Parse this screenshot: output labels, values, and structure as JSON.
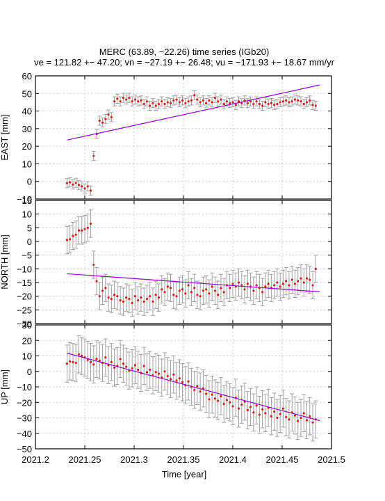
{
  "chart_data": {
    "type": "scatter",
    "title": "MERC (63.89, −22.26) time series (IGb20)",
    "subtitle": "ve = 121.82 +− 47.20; vn = −27.19 +− 26.48; vu = −171.93 +− 18.67 mm/yr",
    "xlabel": "Time [year]",
    "xlim": [
      2021.2,
      2021.5
    ],
    "xticks": [
      "2021.2",
      "2021.25",
      "2021.3",
      "2021.35",
      "2021.4",
      "2021.45",
      "2021.5"
    ],
    "grid": true,
    "panels": [
      {
        "name": "east",
        "ylabel": "EAST [mm]",
        "ylim": [
          -10,
          60
        ],
        "yticks": [
          "−10",
          "0",
          "10",
          "20",
          "30",
          "40",
          "50",
          "60"
        ],
        "trend": {
          "x": [
            2021.232,
            2021.488
          ],
          "y": [
            23.5,
            54.8
          ]
        },
        "error": 2.6,
        "points": [
          [
            2021.232,
            -1.0
          ],
          [
            2021.235,
            -0.5
          ],
          [
            2021.238,
            -1.8
          ],
          [
            2021.241,
            -0.8
          ],
          [
            2021.244,
            -2.0
          ],
          [
            2021.247,
            -2.8
          ],
          [
            2021.25,
            -4.0
          ],
          [
            2021.253,
            -2.8
          ],
          [
            2021.256,
            -5.2
          ],
          [
            2021.259,
            14.5
          ],
          [
            2021.262,
            27.0
          ],
          [
            2021.265,
            34.5
          ],
          [
            2021.268,
            33.5
          ],
          [
            2021.271,
            35.5
          ],
          [
            2021.274,
            38.0
          ],
          [
            2021.277,
            36.5
          ],
          [
            2021.28,
            45.5
          ],
          [
            2021.283,
            47.0
          ],
          [
            2021.286,
            45.5
          ],
          [
            2021.289,
            47.5
          ],
          [
            2021.292,
            46.5
          ],
          [
            2021.295,
            47.5
          ],
          [
            2021.298,
            45.5
          ],
          [
            2021.301,
            46.5
          ],
          [
            2021.304,
            45.5
          ],
          [
            2021.307,
            46.0
          ],
          [
            2021.31,
            44.0
          ],
          [
            2021.313,
            45.5
          ],
          [
            2021.316,
            43.0
          ],
          [
            2021.319,
            44.5
          ],
          [
            2021.322,
            43.0
          ],
          [
            2021.325,
            44.0
          ],
          [
            2021.328,
            45.5
          ],
          [
            2021.331,
            44.0
          ],
          [
            2021.334,
            45.0
          ],
          [
            2021.337,
            44.5
          ],
          [
            2021.34,
            46.0
          ],
          [
            2021.343,
            46.5
          ],
          [
            2021.346,
            45.0
          ],
          [
            2021.349,
            46.0
          ],
          [
            2021.352,
            44.5
          ],
          [
            2021.355,
            45.5
          ],
          [
            2021.358,
            46.0
          ],
          [
            2021.361,
            49.0
          ],
          [
            2021.364,
            46.5
          ],
          [
            2021.367,
            45.0
          ],
          [
            2021.37,
            46.0
          ],
          [
            2021.373,
            44.5
          ],
          [
            2021.376,
            46.0
          ],
          [
            2021.379,
            45.0
          ],
          [
            2021.382,
            47.5
          ],
          [
            2021.385,
            45.5
          ],
          [
            2021.388,
            46.5
          ],
          [
            2021.391,
            44.0
          ],
          [
            2021.394,
            45.5
          ],
          [
            2021.397,
            44.5
          ],
          [
            2021.4,
            45.0
          ],
          [
            2021.403,
            43.5
          ],
          [
            2021.406,
            45.5
          ],
          [
            2021.409,
            44.5
          ],
          [
            2021.412,
            46.0
          ],
          [
            2021.415,
            44.5
          ],
          [
            2021.418,
            45.5
          ],
          [
            2021.421,
            44.0
          ],
          [
            2021.424,
            45.5
          ],
          [
            2021.427,
            44.0
          ],
          [
            2021.43,
            43.0
          ],
          [
            2021.433,
            45.0
          ],
          [
            2021.436,
            44.0
          ],
          [
            2021.439,
            44.5
          ],
          [
            2021.442,
            43.5
          ],
          [
            2021.445,
            44.0
          ],
          [
            2021.448,
            45.0
          ],
          [
            2021.451,
            45.5
          ],
          [
            2021.454,
            46.0
          ],
          [
            2021.457,
            45.0
          ],
          [
            2021.46,
            45.5
          ],
          [
            2021.463,
            46.5
          ],
          [
            2021.466,
            46.0
          ],
          [
            2021.469,
            45.5
          ],
          [
            2021.472,
            44.0
          ],
          [
            2021.475,
            45.0
          ],
          [
            2021.478,
            46.0
          ],
          [
            2021.481,
            43.5
          ],
          [
            2021.484,
            43.0
          ]
        ]
      },
      {
        "name": "north",
        "ylabel": "NORTH [mm]",
        "ylim": [
          -30,
          15
        ],
        "yticks": [
          "−30",
          "−25",
          "−20",
          "−15",
          "−10",
          "−5",
          "0",
          "5",
          "10",
          "15"
        ],
        "trend": {
          "x": [
            2021.232,
            2021.488
          ],
          "y": [
            -11.8,
            -18.4
          ]
        },
        "error": 5.0,
        "points": [
          [
            2021.232,
            0.5
          ],
          [
            2021.235,
            0.8
          ],
          [
            2021.238,
            2.0
          ],
          [
            2021.241,
            2.5
          ],
          [
            2021.244,
            4.0
          ],
          [
            2021.247,
            4.0
          ],
          [
            2021.25,
            4.5
          ],
          [
            2021.253,
            5.0
          ],
          [
            2021.256,
            6.5
          ],
          [
            2021.259,
            -8.5
          ],
          [
            2021.262,
            -14.5
          ],
          [
            2021.265,
            -20.0
          ],
          [
            2021.268,
            -18.0
          ],
          [
            2021.271,
            -17.0
          ],
          [
            2021.274,
            -20.5
          ],
          [
            2021.277,
            -21.0
          ],
          [
            2021.28,
            -19.5
          ],
          [
            2021.283,
            -20.0
          ],
          [
            2021.286,
            -21.5
          ],
          [
            2021.289,
            -22.0
          ],
          [
            2021.292,
            -20.5
          ],
          [
            2021.295,
            -21.0
          ],
          [
            2021.298,
            -22.5
          ],
          [
            2021.301,
            -20.0
          ],
          [
            2021.304,
            -21.5
          ],
          [
            2021.307,
            -20.5
          ],
          [
            2021.31,
            -22.0
          ],
          [
            2021.313,
            -21.0
          ],
          [
            2021.316,
            -20.0
          ],
          [
            2021.319,
            -22.0
          ],
          [
            2021.322,
            -19.5
          ],
          [
            2021.325,
            -20.5
          ],
          [
            2021.328,
            -17.5
          ],
          [
            2021.331,
            -18.5
          ],
          [
            2021.334,
            -16.5
          ],
          [
            2021.337,
            -17.0
          ],
          [
            2021.34,
            -19.5
          ],
          [
            2021.343,
            -20.0
          ],
          [
            2021.346,
            -18.0
          ],
          [
            2021.349,
            -17.5
          ],
          [
            2021.352,
            -19.0
          ],
          [
            2021.355,
            -16.0
          ],
          [
            2021.358,
            -18.5
          ],
          [
            2021.361,
            -17.0
          ],
          [
            2021.364,
            -19.5
          ],
          [
            2021.367,
            -20.0
          ],
          [
            2021.37,
            -18.0
          ],
          [
            2021.373,
            -17.5
          ],
          [
            2021.376,
            -19.0
          ],
          [
            2021.379,
            -16.5
          ],
          [
            2021.382,
            -18.0
          ],
          [
            2021.385,
            -19.5
          ],
          [
            2021.388,
            -17.0
          ],
          [
            2021.391,
            -18.5
          ],
          [
            2021.394,
            -16.0
          ],
          [
            2021.397,
            -17.0
          ],
          [
            2021.4,
            -15.5
          ],
          [
            2021.403,
            -16.5
          ],
          [
            2021.406,
            -15.0
          ],
          [
            2021.409,
            -16.0
          ],
          [
            2021.412,
            -17.5
          ],
          [
            2021.415,
            -15.5
          ],
          [
            2021.418,
            -16.5
          ],
          [
            2021.421,
            -18.0
          ],
          [
            2021.424,
            -16.0
          ],
          [
            2021.427,
            -17.0
          ],
          [
            2021.43,
            -18.5
          ],
          [
            2021.433,
            -16.5
          ],
          [
            2021.436,
            -15.5
          ],
          [
            2021.439,
            -17.0
          ],
          [
            2021.442,
            -16.0
          ],
          [
            2021.445,
            -15.0
          ],
          [
            2021.448,
            -16.5
          ],
          [
            2021.451,
            -15.5
          ],
          [
            2021.454,
            -14.5
          ],
          [
            2021.457,
            -16.0
          ],
          [
            2021.46,
            -14.0
          ],
          [
            2021.463,
            -15.5
          ],
          [
            2021.466,
            -14.5
          ],
          [
            2021.469,
            -13.5
          ],
          [
            2021.472,
            -15.0
          ],
          [
            2021.475,
            -13.5
          ],
          [
            2021.478,
            -14.0
          ],
          [
            2021.481,
            -16.0
          ],
          [
            2021.484,
            -10.0
          ]
        ]
      },
      {
        "name": "up",
        "ylabel": "UP [mm]",
        "ylim": [
          -50,
          30
        ],
        "yticks": [
          "−50",
          "−40",
          "−30",
          "−20",
          "−10",
          "0",
          "10",
          "20",
          "30"
        ],
        "trend": {
          "x": [
            2021.232,
            2021.488
          ],
          "y": [
            11.8,
            -31.8
          ]
        },
        "error": 12.0,
        "points": [
          [
            2021.232,
            5.0
          ],
          [
            2021.235,
            6.5
          ],
          [
            2021.238,
            6.0
          ],
          [
            2021.241,
            5.5
          ],
          [
            2021.244,
            11.0
          ],
          [
            2021.247,
            10.0
          ],
          [
            2021.25,
            9.0
          ],
          [
            2021.253,
            7.5
          ],
          [
            2021.256,
            6.0
          ],
          [
            2021.259,
            4.5
          ],
          [
            2021.262,
            8.0
          ],
          [
            2021.265,
            7.0
          ],
          [
            2021.268,
            5.5
          ],
          [
            2021.271,
            9.0
          ],
          [
            2021.274,
            4.0
          ],
          [
            2021.277,
            6.0
          ],
          [
            2021.28,
            2.5
          ],
          [
            2021.283,
            3.5
          ],
          [
            2021.286,
            8.0
          ],
          [
            2021.289,
            5.0
          ],
          [
            2021.292,
            3.0
          ],
          [
            2021.295,
            0.5
          ],
          [
            2021.298,
            2.0
          ],
          [
            2021.301,
            4.0
          ],
          [
            2021.304,
            1.0
          ],
          [
            2021.307,
            -1.0
          ],
          [
            2021.31,
            3.5
          ],
          [
            2021.313,
            -0.5
          ],
          [
            2021.316,
            1.0
          ],
          [
            2021.319,
            -2.5
          ],
          [
            2021.322,
            -0.5
          ],
          [
            2021.325,
            -1.5
          ],
          [
            2021.328,
            -4.0
          ],
          [
            2021.331,
            0.0
          ],
          [
            2021.334,
            -3.0
          ],
          [
            2021.337,
            -5.0
          ],
          [
            2021.34,
            -2.0
          ],
          [
            2021.343,
            -6.0
          ],
          [
            2021.346,
            -4.5
          ],
          [
            2021.349,
            -7.0
          ],
          [
            2021.352,
            -9.0
          ],
          [
            2021.355,
            -6.5
          ],
          [
            2021.358,
            -10.0
          ],
          [
            2021.361,
            -12.0
          ],
          [
            2021.364,
            -9.5
          ],
          [
            2021.367,
            -13.0
          ],
          [
            2021.37,
            -11.0
          ],
          [
            2021.373,
            -14.5
          ],
          [
            2021.376,
            -18.0
          ],
          [
            2021.379,
            -15.0
          ],
          [
            2021.382,
            -17.5
          ],
          [
            2021.385,
            -19.0
          ],
          [
            2021.388,
            -16.0
          ],
          [
            2021.391,
            -21.0
          ],
          [
            2021.394,
            -18.5
          ],
          [
            2021.397,
            -20.0
          ],
          [
            2021.4,
            -22.5
          ],
          [
            2021.403,
            -17.0
          ],
          [
            2021.406,
            -24.0
          ],
          [
            2021.409,
            -21.5
          ],
          [
            2021.412,
            -19.5
          ],
          [
            2021.415,
            -25.0
          ],
          [
            2021.418,
            -23.0
          ],
          [
            2021.421,
            -26.5
          ],
          [
            2021.424,
            -22.0
          ],
          [
            2021.427,
            -28.0
          ],
          [
            2021.43,
            -24.5
          ],
          [
            2021.433,
            -27.0
          ],
          [
            2021.436,
            -23.5
          ],
          [
            2021.439,
            -29.0
          ],
          [
            2021.442,
            -26.0
          ],
          [
            2021.445,
            -30.0
          ],
          [
            2021.448,
            -27.5
          ],
          [
            2021.451,
            -24.0
          ],
          [
            2021.454,
            -29.5
          ],
          [
            2021.457,
            -31.0
          ],
          [
            2021.46,
            -26.5
          ],
          [
            2021.463,
            -28.5
          ],
          [
            2021.466,
            -32.0
          ],
          [
            2021.469,
            -30.0
          ],
          [
            2021.472,
            -27.0
          ],
          [
            2021.475,
            -31.5
          ],
          [
            2021.478,
            -29.0
          ],
          [
            2021.481,
            -33.0
          ],
          [
            2021.484,
            -31.0
          ]
        ]
      }
    ]
  }
}
